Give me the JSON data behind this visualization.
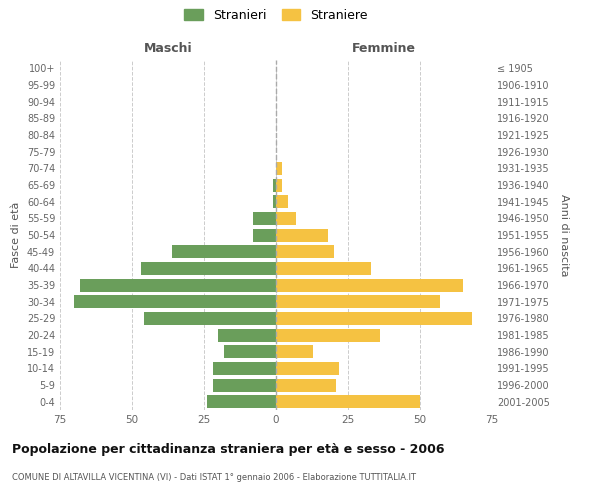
{
  "age_groups": [
    "0-4",
    "5-9",
    "10-14",
    "15-19",
    "20-24",
    "25-29",
    "30-34",
    "35-39",
    "40-44",
    "45-49",
    "50-54",
    "55-59",
    "60-64",
    "65-69",
    "70-74",
    "75-79",
    "80-84",
    "85-89",
    "90-94",
    "95-99",
    "100+"
  ],
  "birth_years": [
    "2001-2005",
    "1996-2000",
    "1991-1995",
    "1986-1990",
    "1981-1985",
    "1976-1980",
    "1971-1975",
    "1966-1970",
    "1961-1965",
    "1956-1960",
    "1951-1955",
    "1946-1950",
    "1941-1945",
    "1936-1940",
    "1931-1935",
    "1926-1930",
    "1921-1925",
    "1916-1920",
    "1911-1915",
    "1906-1910",
    "≤ 1905"
  ],
  "maschi": [
    24,
    22,
    22,
    18,
    20,
    46,
    70,
    68,
    47,
    36,
    8,
    8,
    1,
    1,
    0,
    0,
    0,
    0,
    0,
    0,
    0
  ],
  "femmine": [
    50,
    21,
    22,
    13,
    36,
    68,
    57,
    65,
    33,
    20,
    18,
    7,
    4,
    2,
    2,
    0,
    0,
    0,
    0,
    0,
    0
  ],
  "color_maschi": "#6a9e5b",
  "color_femmine": "#f5c242",
  "background_color": "#ffffff",
  "grid_color": "#cccccc",
  "title": "Popolazione per cittadinanza straniera per età e sesso - 2006",
  "subtitle": "COMUNE DI ALTAVILLA VICENTINA (VI) - Dati ISTAT 1° gennaio 2006 - Elaborazione TUTTITALIA.IT",
  "ylabel_left": "Fasce di età",
  "ylabel_right": "Anni di nascita",
  "xlabel_maschi": "Maschi",
  "xlabel_femmine": "Femmine",
  "legend_maschi": "Stranieri",
  "legend_femmine": "Straniere",
  "xlim": 75
}
